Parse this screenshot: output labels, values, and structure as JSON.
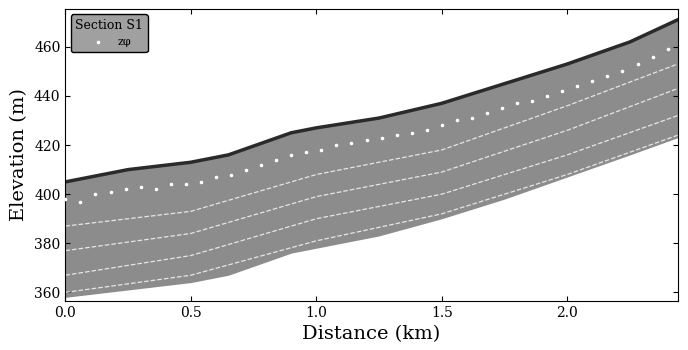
{
  "chart_data": {
    "type": "radargram",
    "x_label": "Distance (km)",
    "y_label": "Elevation (m)",
    "legend_title": "Section S1",
    "xlim": [
      0,
      2.44
    ],
    "ylim": [
      356.5,
      475.5
    ],
    "xticks": [
      0.0,
      0.5,
      1.0,
      1.5,
      2.0
    ],
    "yticks": [
      360,
      380,
      400,
      420,
      440,
      460
    ],
    "legend": "upper left",
    "section": {
      "color": "#8c8c8c",
      "surface_color": "#2a2a2a",
      "x": [
        0.0,
        0.25,
        0.5,
        0.65,
        0.9,
        1.0,
        1.25,
        1.5,
        1.75,
        2.0,
        2.25,
        2.44
      ],
      "surface": [
        405,
        410,
        413,
        416,
        425,
        427,
        431,
        437,
        445,
        453,
        462,
        471
      ],
      "bed": [
        358,
        361,
        364,
        367,
        376,
        378,
        383,
        390,
        398,
        407,
        416,
        423
      ]
    },
    "isochrones": [
      {
        "x": [
          0.0,
          0.5,
          1.0,
          1.5,
          2.0,
          2.44
        ],
        "values": [
          387,
          393,
          408,
          418,
          436,
          453
        ],
        "line_style": "dashed",
        "color": "#e6e6e6"
      },
      {
        "x": [
          0.0,
          0.5,
          1.0,
          1.5,
          2.0,
          2.44
        ],
        "values": [
          377,
          384,
          399,
          409,
          426,
          443
        ],
        "line_style": "dashed",
        "color": "#e6e6e6"
      },
      {
        "x": [
          0.0,
          0.5,
          1.0,
          1.5,
          2.0,
          2.44
        ],
        "values": [
          367,
          375,
          390,
          400,
          416,
          432
        ],
        "line_style": "dashed",
        "color": "#e6e6e6"
      },
      {
        "x": [
          0.0,
          0.5,
          1.0,
          1.5,
          2.0,
          2.44
        ],
        "values": [
          360,
          367,
          381,
          392,
          408,
          424
        ],
        "line_style": "dashed",
        "color": "#e6e6e6"
      }
    ],
    "series": [
      {
        "name": "zφ",
        "type": "scatter",
        "marker": "dot",
        "color": "#ffffff",
        "x": [
          0.0,
          0.06,
          0.12,
          0.18,
          0.24,
          0.3,
          0.36,
          0.42,
          0.48,
          0.54,
          0.6,
          0.66,
          0.72,
          0.78,
          0.84,
          0.9,
          0.96,
          1.02,
          1.08,
          1.14,
          1.2,
          1.26,
          1.32,
          1.38,
          1.44,
          1.5,
          1.56,
          1.62,
          1.68,
          1.74,
          1.8,
          1.86,
          1.92,
          1.98,
          2.04,
          2.1,
          2.16,
          2.22,
          2.28,
          2.34,
          2.4
        ],
        "values": [
          398,
          397,
          400,
          401,
          402,
          403,
          402,
          404,
          404,
          405,
          407,
          408,
          410,
          412,
          414,
          416,
          417,
          418,
          420,
          421,
          422,
          423,
          424,
          425,
          426,
          428,
          430,
          431,
          433,
          435,
          437,
          438,
          440,
          442,
          444,
          446,
          448,
          450,
          453,
          456,
          459
        ]
      }
    ]
  }
}
